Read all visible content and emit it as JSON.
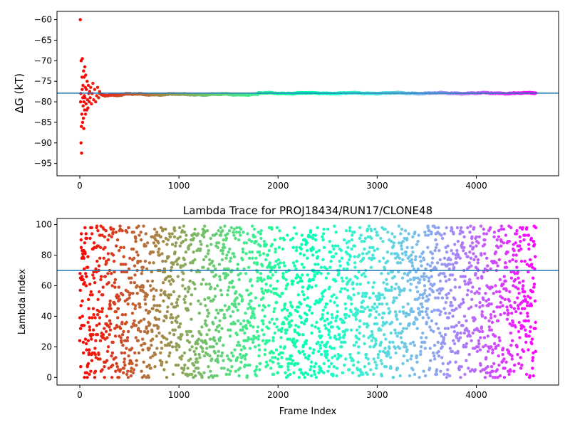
{
  "chart_data": [
    {
      "type": "scatter",
      "title": "",
      "xlabel": "",
      "ylabel": "ΔG (kT)",
      "xlim": [
        -230,
        4830
      ],
      "ylim": [
        -98,
        -58
      ],
      "xticks": [
        0,
        1000,
        2000,
        3000,
        4000
      ],
      "yticks": [
        -60,
        -65,
        -70,
        -75,
        -80,
        -85,
        -90,
        -95
      ],
      "grid": false,
      "colormap": "rainbow",
      "hline": {
        "y": -77.9,
        "color": "#1f77b4"
      },
      "n_frames": 4600,
      "series": [
        {
          "description_points": "initial scattered frames",
          "points": [
            [
              5,
              -60
            ],
            [
              8,
              -80
            ],
            [
              10,
              -78
            ],
            [
              12,
              -90
            ],
            [
              14,
              -70
            ],
            [
              16,
              -86
            ],
            [
              18,
              -92.5
            ],
            [
              20,
              -83
            ],
            [
              22,
              -74
            ],
            [
              24,
              -77
            ],
            [
              26,
              -69.5
            ],
            [
              28,
              -85
            ],
            [
              30,
              -79
            ],
            [
              32,
              -76
            ],
            [
              34,
              -81
            ],
            [
              36,
              -84
            ],
            [
              38,
              -72.5
            ],
            [
              40,
              -86.5
            ],
            [
              42,
              -80
            ],
            [
              44,
              -74
            ],
            [
              46,
              -78.5
            ],
            [
              48,
              -82
            ],
            [
              50,
              -71.5
            ],
            [
              52,
              -79
            ],
            [
              55,
              -76.5
            ],
            [
              58,
              -83
            ],
            [
              60,
              -73.5
            ],
            [
              63,
              -80.5
            ],
            [
              66,
              -77
            ],
            [
              70,
              -82
            ],
            [
              74,
              -75
            ],
            [
              78,
              -79.5
            ],
            [
              82,
              -81.5
            ],
            [
              86,
              -76
            ],
            [
              90,
              -78
            ],
            [
              95,
              -80
            ],
            [
              100,
              -77.5
            ],
            [
              105,
              -79
            ],
            [
              110,
              -76.5
            ],
            [
              118,
              -80.5
            ],
            [
              125,
              -78
            ],
            [
              132,
              -75.5
            ],
            [
              140,
              -79.5
            ],
            [
              150,
              -77
            ],
            [
              160,
              -80
            ],
            [
              170,
              -78.5
            ],
            [
              180,
              -76.5
            ],
            [
              190,
              -79
            ],
            [
              200,
              -77.5
            ]
          ]
        }
      ]
    },
    {
      "type": "scatter",
      "title": "Lambda Trace for PROJ18434/RUN17/CLONE48",
      "xlabel": "Frame Index",
      "ylabel": "Lambda Index",
      "xlim": [
        -230,
        4830
      ],
      "ylim": [
        -5,
        104
      ],
      "xticks": [
        0,
        1000,
        2000,
        3000,
        4000
      ],
      "yticks": [
        0,
        20,
        40,
        60,
        80,
        100
      ],
      "grid": false,
      "colormap": "rainbow",
      "hline": {
        "y": 70,
        "color": "#1f77b4"
      },
      "n_frames": 4600,
      "lambda_range": [
        0,
        99
      ]
    }
  ]
}
